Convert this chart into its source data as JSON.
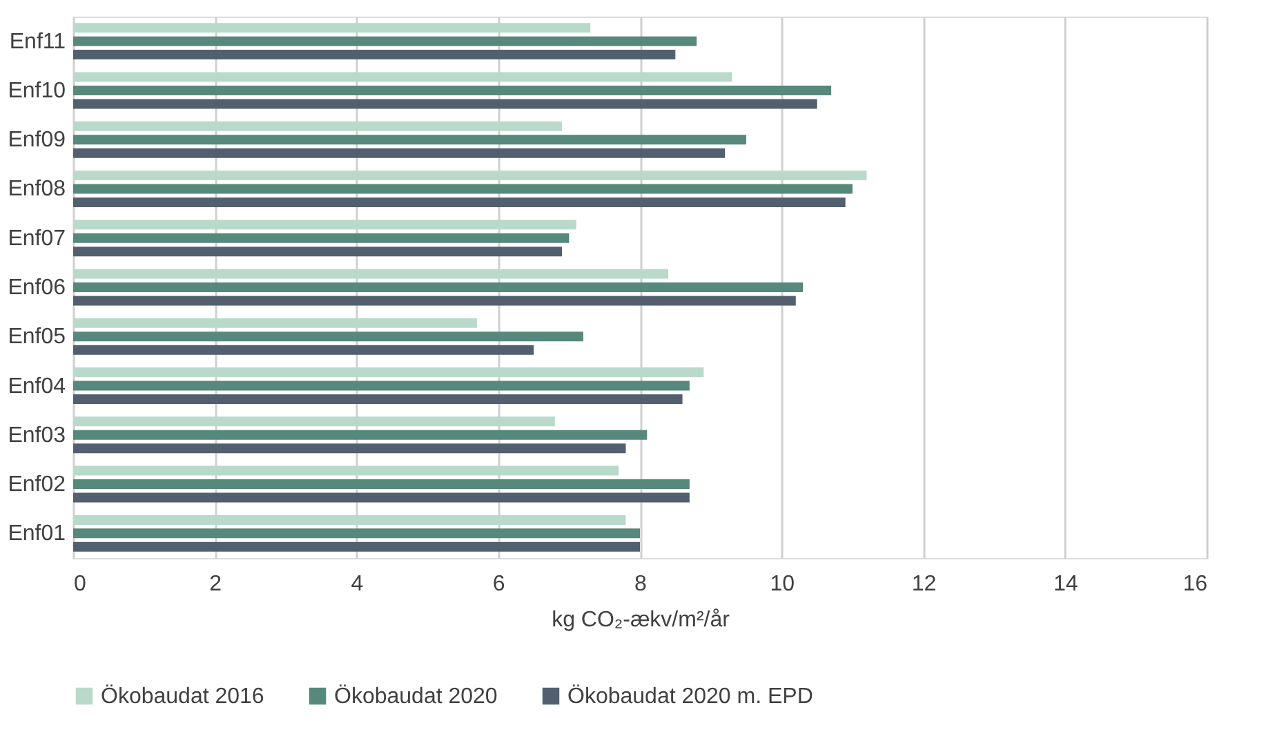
{
  "chart_data": {
    "type": "bar",
    "orientation": "horizontal",
    "xlabel": "kg CO₂-ækv/m²/år",
    "categories": [
      "Enf11",
      "Enf10",
      "Enf09",
      "Enf08",
      "Enf07",
      "Enf06",
      "Enf05",
      "Enf04",
      "Enf03",
      "Enf02",
      "Enf01"
    ],
    "series": [
      {
        "name": "Ökobaudat 2016",
        "color": "#b9dacb",
        "values": [
          7.3,
          9.3,
          6.9,
          11.2,
          7.1,
          8.4,
          5.7,
          8.9,
          6.8,
          7.7,
          7.8
        ]
      },
      {
        "name": "Ökobaudat 2020",
        "color": "#56887b",
        "values": [
          8.8,
          10.7,
          9.5,
          11.0,
          7.0,
          10.3,
          7.2,
          8.7,
          8.1,
          8.7,
          8.0
        ]
      },
      {
        "name": "Ökobaudat 2020 m. EPD",
        "color": "#525f6e",
        "values": [
          8.5,
          10.5,
          9.2,
          10.9,
          6.9,
          10.2,
          6.5,
          8.6,
          7.8,
          8.7,
          8.0
        ]
      }
    ],
    "xlim": [
      0,
      16
    ],
    "xticks": [
      0,
      2,
      4,
      6,
      8,
      10,
      12,
      14,
      16
    ],
    "grid": "x",
    "legend": "bottom"
  }
}
